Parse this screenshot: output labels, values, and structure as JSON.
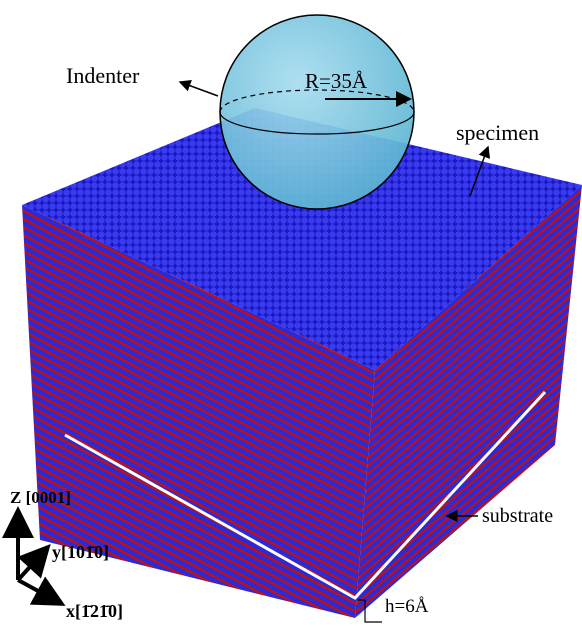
{
  "labels": {
    "indenter": "Indenter",
    "radius": "R=35Å",
    "specimen": "specimen",
    "substrate": "substrate",
    "thickness": "h=6Å"
  },
  "axes": [
    {
      "letter": "Z",
      "index": "[0001]"
    },
    {
      "letter": "y",
      "index": "[101̄0]"
    },
    {
      "letter": "x",
      "index": "[1̄21̄0]"
    }
  ]
}
